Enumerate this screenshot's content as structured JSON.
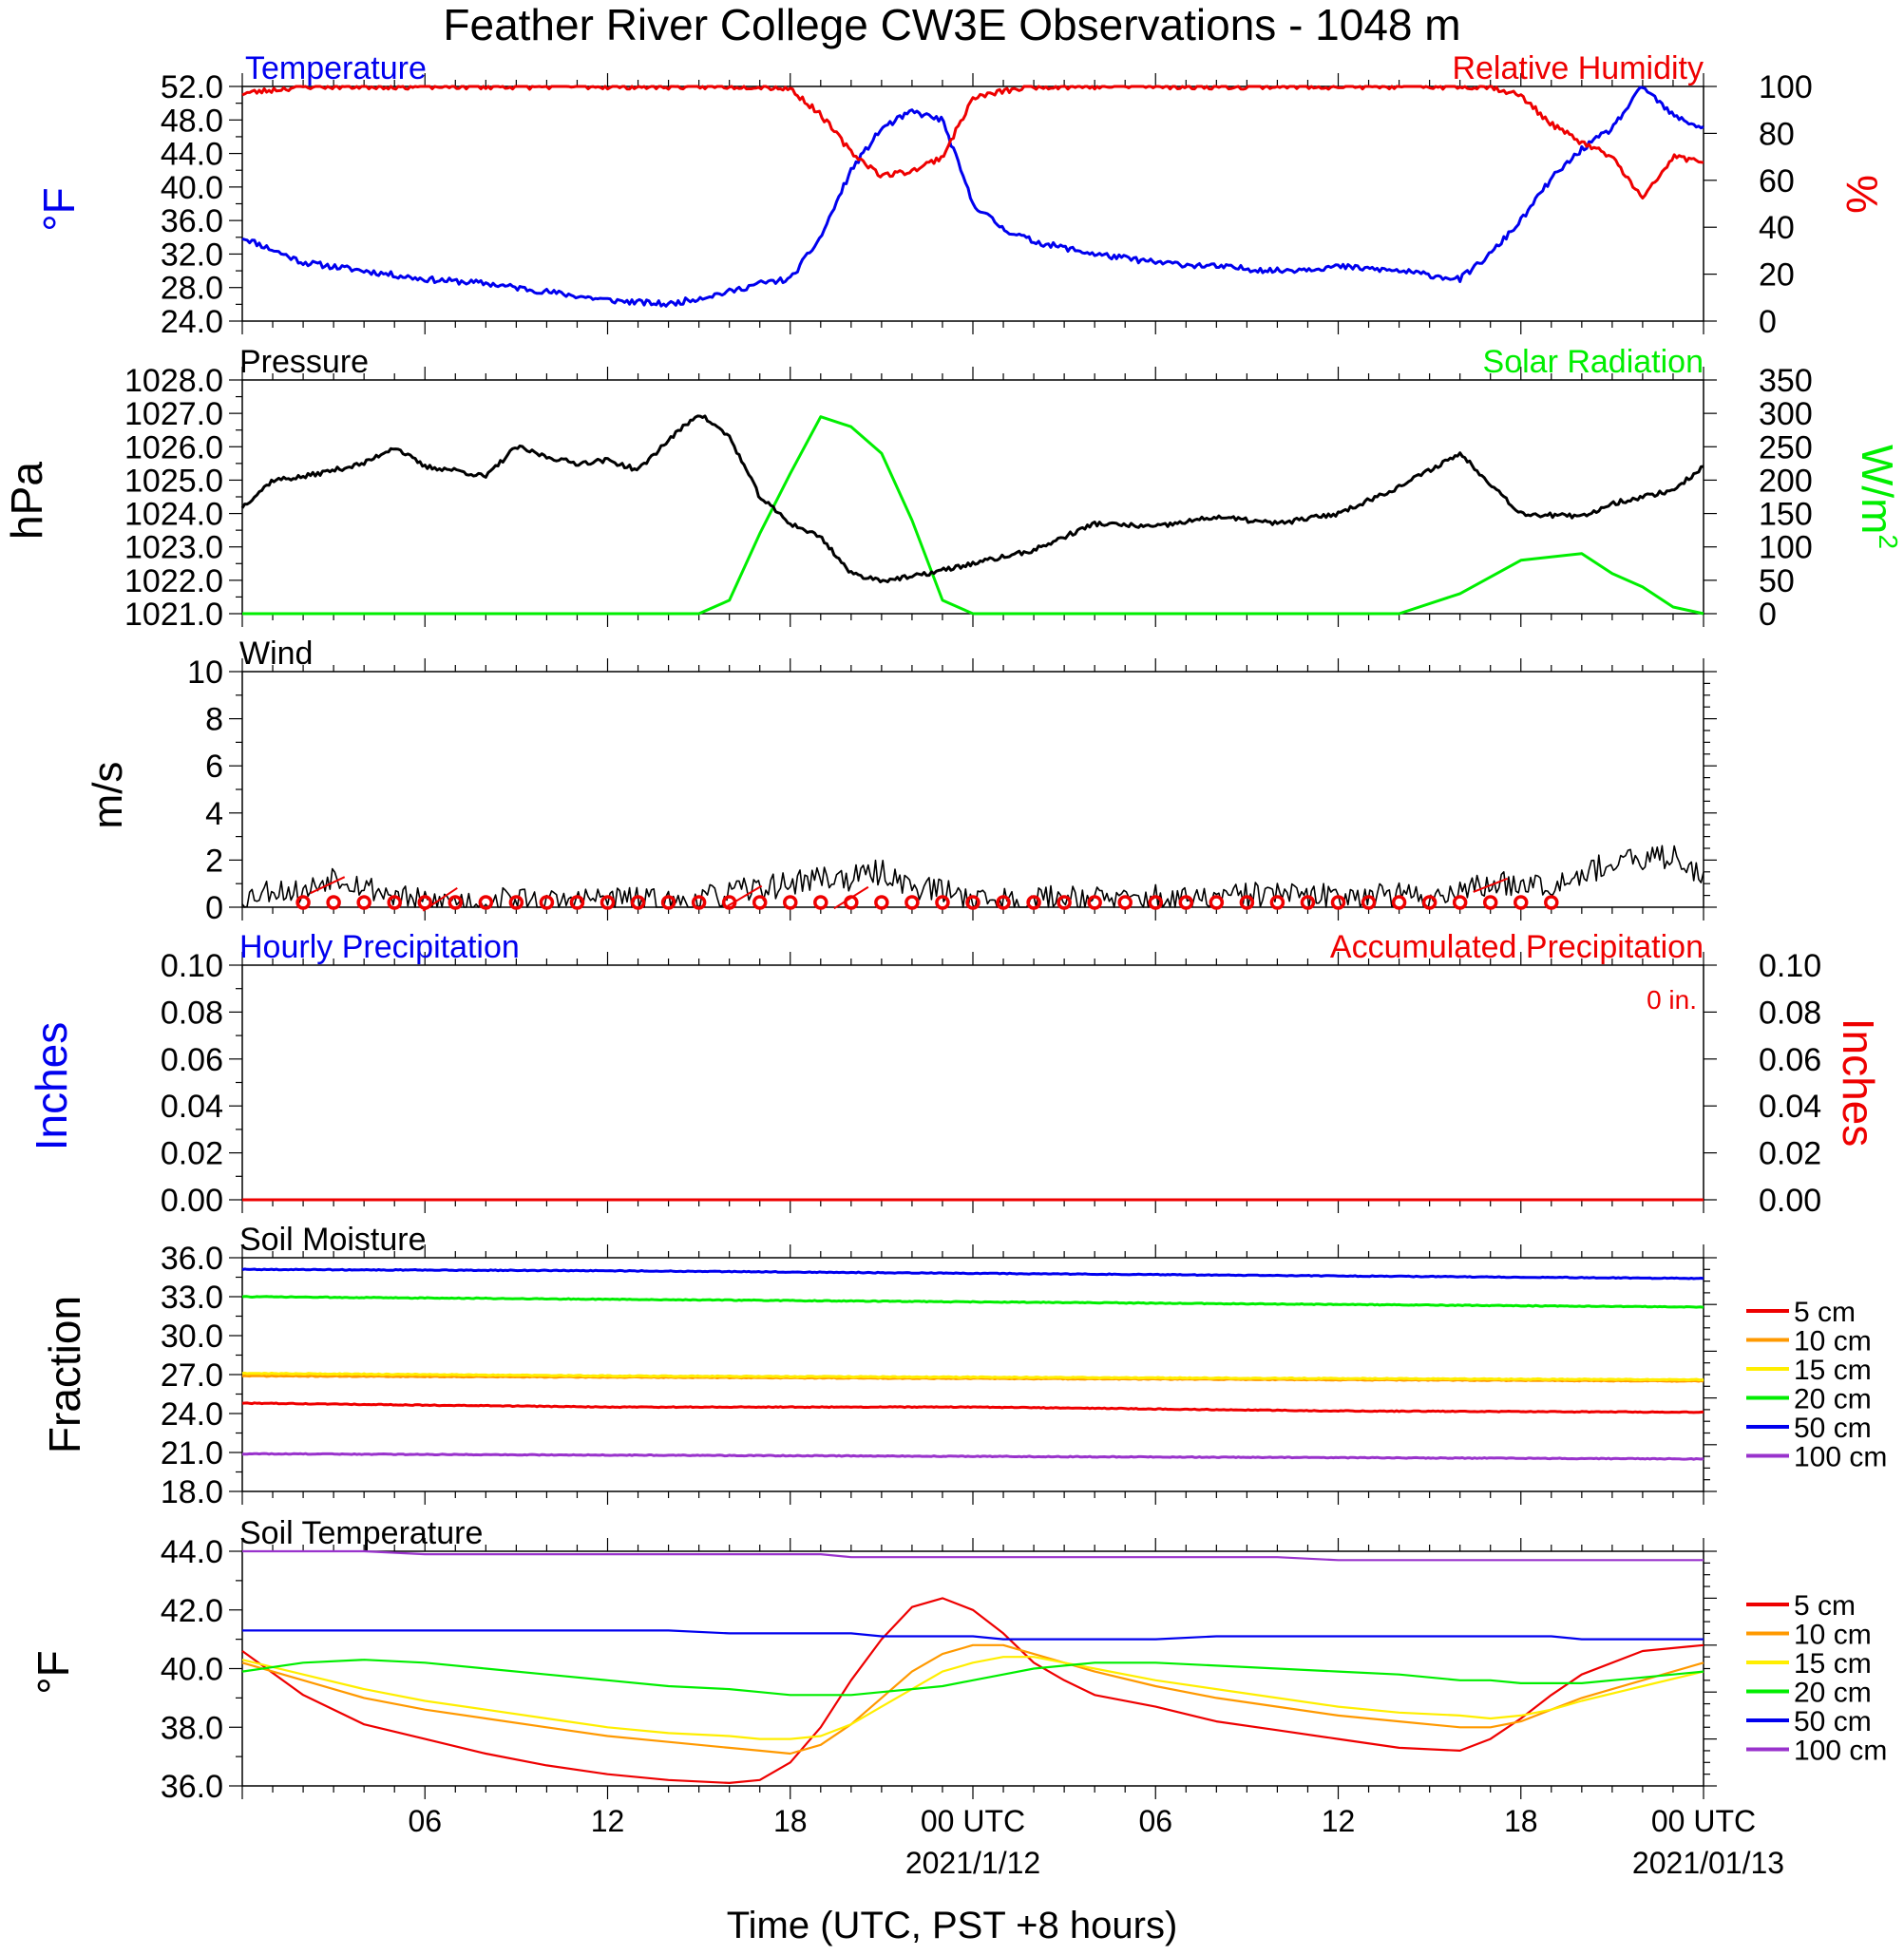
{
  "title": "Feather River College CW3E Observations - 1048 m",
  "x_axis": {
    "title": "Time (UTC, PST +8 hours)",
    "tick_labels": [
      "06",
      "12",
      "18",
      "00 UTC",
      "06",
      "12",
      "18",
      "00 UTC"
    ],
    "date_labels": [
      "2021/1/12",
      "2021/01/13"
    ]
  },
  "colors": {
    "blue": "#0000ee",
    "red": "#ee0000",
    "green": "#00ee00",
    "black": "#000000",
    "orange": "#ff9900",
    "yellow": "#ffee00",
    "purple": "#9933cc"
  },
  "chart_data": [
    {
      "type": "line",
      "title_left": "Temperature",
      "title_right": "Relative Humidity",
      "ylabel_left": "°F",
      "ylabel_right": "%",
      "ylim_left": [
        24,
        52
      ],
      "ylim_right": [
        0,
        100
      ],
      "yticks_left": [
        "24.0",
        "28.0",
        "32.0",
        "36.0",
        "40.0",
        "44.0",
        "48.0",
        "52.0"
      ],
      "yticks_right": [
        "0",
        "20",
        "40",
        "60",
        "80",
        "100"
      ],
      "x_hours": [
        0,
        2,
        4,
        6,
        8,
        10,
        12,
        14,
        16,
        17,
        18,
        19,
        20,
        21,
        22,
        23,
        24,
        25,
        26,
        28,
        30,
        32,
        34,
        36,
        38,
        40,
        41,
        42,
        43,
        44,
        45,
        46,
        47,
        48
      ],
      "series": [
        {
          "name": "Temperature",
          "axis": "left",
          "values": [
            34,
            31,
            30,
            29,
            28.5,
            27.5,
            26.5,
            26,
            27.5,
            28.5,
            29,
            34,
            42,
            47,
            49,
            48,
            38,
            35,
            33.5,
            32,
            31,
            30.5,
            30,
            30.5,
            30,
            29,
            32,
            36,
            41,
            44.5,
            47,
            52,
            48.5,
            47
          ]
        },
        {
          "name": "Relative Humidity",
          "axis": "right",
          "values": [
            97,
            100,
            100,
            100,
            100,
            100,
            100,
            100,
            100,
            100,
            99,
            88,
            72,
            62,
            64,
            70,
            95,
            98,
            100,
            100,
            100,
            100,
            100,
            100,
            100,
            100,
            100,
            96,
            84,
            76,
            70,
            52,
            70,
            68
          ]
        }
      ]
    },
    {
      "type": "line",
      "title_left": "Pressure",
      "title_right": "Solar Radiation",
      "ylabel_left": "hPa",
      "ylabel_right": "W/m",
      "ylabel_right_sup": "2",
      "ylim_left": [
        1021,
        1028
      ],
      "ylim_right": [
        0,
        350
      ],
      "yticks_left": [
        "1021.0",
        "1022.0",
        "1023.0",
        "1024.0",
        "1025.0",
        "1026.0",
        "1027.0",
        "1028.0"
      ],
      "yticks_right": [
        "0",
        "50",
        "100",
        "150",
        "200",
        "250",
        "300",
        "350"
      ],
      "x_hours": [
        0,
        1,
        2,
        3,
        4,
        5,
        6,
        7,
        8,
        9,
        10,
        11,
        12,
        13,
        14,
        15,
        16,
        17,
        18,
        19,
        20,
        21,
        22,
        23,
        24,
        26,
        28,
        30,
        32,
        34,
        36,
        38,
        40,
        42,
        44,
        45,
        46,
        47,
        48
      ],
      "series": [
        {
          "name": "Pressure",
          "axis": "left",
          "values": [
            1024.2,
            1025.0,
            1025.1,
            1025.3,
            1025.5,
            1026.0,
            1025.4,
            1025.3,
            1025.1,
            1026.0,
            1025.7,
            1025.5,
            1025.6,
            1025.3,
            1026.2,
            1027.0,
            1026.3,
            1024.5,
            1023.7,
            1023.3,
            1022.2,
            1022.0,
            1022.1,
            1022.3,
            1022.5,
            1022.9,
            1023.7,
            1023.6,
            1023.9,
            1023.7,
            1024.0,
            1024.8,
            1025.8,
            1024.0,
            1023.9,
            1024.3,
            1024.5,
            1024.7,
            1025.4
          ]
        },
        {
          "name": "Solar Radiation",
          "axis": "right",
          "values": [
            0,
            0,
            0,
            0,
            0,
            0,
            0,
            0,
            0,
            0,
            0,
            0,
            0,
            0,
            0,
            0,
            20,
            120,
            210,
            295,
            280,
            240,
            140,
            20,
            0,
            0,
            0,
            0,
            0,
            0,
            0,
            0,
            30,
            80,
            90,
            60,
            40,
            10,
            0
          ]
        }
      ]
    },
    {
      "type": "line",
      "title_left": "Wind",
      "ylabel_left": "m/s",
      "ylim_left": [
        0,
        10
      ],
      "yticks_left": [
        "0",
        "2",
        "4",
        "6",
        "8",
        "10"
      ],
      "x_hours": [
        0,
        1,
        2,
        3,
        4,
        5,
        6,
        7,
        8,
        9,
        10,
        11,
        12,
        13,
        14,
        15,
        16,
        17,
        18,
        19,
        20,
        21,
        22,
        23,
        24,
        25,
        26,
        27,
        28,
        29,
        30,
        31,
        32,
        33,
        34,
        35,
        36,
        37,
        38,
        39,
        40,
        41,
        42,
        43,
        44,
        45,
        46,
        47,
        48
      ],
      "series": [
        {
          "name": "Wind speed",
          "axis": "left",
          "values": [
            0.4,
            0.8,
            0.6,
            1.4,
            0.9,
            0.5,
            0.2,
            0.3,
            0.2,
            0.4,
            0.2,
            0.3,
            0.4,
            0.3,
            0.2,
            0.3,
            0.6,
            0.8,
            1.0,
            1.3,
            1.2,
            1.5,
            0.9,
            0.7,
            0.4,
            0.3,
            0.3,
            0.5,
            0.4,
            0.3,
            0.4,
            0.3,
            0.4,
            0.5,
            0.6,
            0.4,
            0.5,
            0.6,
            0.5,
            0.4,
            0.8,
            0.9,
            1.1,
            1.0,
            1.5,
            1.8,
            2.0,
            2.2,
            1.4
          ]
        }
      ]
    },
    {
      "type": "line",
      "title_left": "Hourly Precipitation",
      "title_right": "Accumulated Precipitation",
      "accumulated_label": "0 in.",
      "ylabel_left": "Inches",
      "ylabel_right": "Inches",
      "ylim_left": [
        0,
        0.1
      ],
      "ylim_right": [
        0,
        0.1
      ],
      "yticks_left": [
        "0.00",
        "0.02",
        "0.04",
        "0.06",
        "0.08",
        "0.10"
      ],
      "yticks_right": [
        "0.00",
        "0.02",
        "0.04",
        "0.06",
        "0.08",
        "0.10"
      ],
      "x_hours": [
        0,
        48
      ],
      "series": [
        {
          "name": "Hourly Precipitation",
          "axis": "left",
          "values": [
            0,
            0
          ]
        },
        {
          "name": "Accumulated Precipitation",
          "axis": "right",
          "values": [
            0,
            0
          ]
        }
      ]
    },
    {
      "type": "line",
      "title_left": "Soil Moisture",
      "ylabel_left": "Fraction",
      "ylim_left": [
        18,
        36
      ],
      "yticks_left": [
        "18.0",
        "21.0",
        "24.0",
        "27.0",
        "30.0",
        "33.0",
        "36.0"
      ],
      "x_hours": [
        0,
        12,
        24,
        36,
        48
      ],
      "legend": [
        "5 cm",
        "10 cm",
        "15 cm",
        "20 cm",
        "50 cm",
        "100 cm"
      ],
      "series": [
        {
          "name": "5 cm",
          "values": [
            24.8,
            24.5,
            24.5,
            24.2,
            24.1
          ]
        },
        {
          "name": "10 cm",
          "values": [
            26.9,
            26.8,
            26.7,
            26.6,
            26.5
          ]
        },
        {
          "name": "15 cm",
          "values": [
            27.1,
            26.9,
            26.8,
            26.7,
            26.6
          ]
        },
        {
          "name": "20 cm",
          "values": [
            33.0,
            32.8,
            32.6,
            32.4,
            32.2
          ]
        },
        {
          "name": "50 cm",
          "values": [
            35.1,
            35.0,
            34.8,
            34.6,
            34.4
          ]
        },
        {
          "name": "100 cm",
          "values": [
            20.9,
            20.8,
            20.7,
            20.6,
            20.5
          ]
        }
      ]
    },
    {
      "type": "line",
      "title_left": "Soil Temperature",
      "ylabel_left": "°F",
      "ylim_left": [
        36,
        44
      ],
      "yticks_left": [
        "36.0",
        "38.0",
        "40.0",
        "42.0",
        "44.0"
      ],
      "x_hours": [
        0,
        2,
        4,
        6,
        8,
        10,
        12,
        14,
        16,
        17,
        18,
        19,
        20,
        21,
        22,
        23,
        24,
        25,
        26,
        27,
        28,
        30,
        32,
        34,
        36,
        38,
        40,
        41,
        42,
        43,
        44,
        46,
        48
      ],
      "legend": [
        "5 cm",
        "10 cm",
        "15 cm",
        "20 cm",
        "50 cm",
        "100 cm"
      ],
      "series": [
        {
          "name": "5 cm",
          "values": [
            40.6,
            39.1,
            38.1,
            37.6,
            37.1,
            36.7,
            36.4,
            36.2,
            36.1,
            36.2,
            36.8,
            38.0,
            39.6,
            41.0,
            42.1,
            42.4,
            42.0,
            41.2,
            40.2,
            39.6,
            39.1,
            38.7,
            38.2,
            37.9,
            37.6,
            37.3,
            37.2,
            37.6,
            38.3,
            39.1,
            39.8,
            40.6,
            40.8
          ]
        },
        {
          "name": "10 cm",
          "values": [
            40.2,
            39.6,
            39.0,
            38.6,
            38.3,
            38.0,
            37.7,
            37.5,
            37.3,
            37.2,
            37.1,
            37.4,
            38.1,
            39.0,
            39.9,
            40.5,
            40.8,
            40.8,
            40.5,
            40.2,
            39.9,
            39.4,
            39.0,
            38.7,
            38.4,
            38.2,
            38.0,
            38.0,
            38.2,
            38.6,
            39.0,
            39.6,
            40.2
          ]
        },
        {
          "name": "15 cm",
          "values": [
            40.3,
            39.8,
            39.3,
            38.9,
            38.6,
            38.3,
            38.0,
            37.8,
            37.7,
            37.6,
            37.6,
            37.7,
            38.1,
            38.7,
            39.3,
            39.9,
            40.2,
            40.4,
            40.4,
            40.2,
            40.0,
            39.6,
            39.3,
            39.0,
            38.7,
            38.5,
            38.4,
            38.3,
            38.4,
            38.6,
            38.9,
            39.4,
            39.9
          ]
        },
        {
          "name": "20 cm",
          "values": [
            39.9,
            40.2,
            40.3,
            40.2,
            40.0,
            39.8,
            39.6,
            39.4,
            39.3,
            39.2,
            39.1,
            39.1,
            39.1,
            39.2,
            39.3,
            39.4,
            39.6,
            39.8,
            40.0,
            40.1,
            40.2,
            40.2,
            40.1,
            40.0,
            39.9,
            39.8,
            39.6,
            39.6,
            39.5,
            39.5,
            39.5,
            39.7,
            39.9
          ]
        },
        {
          "name": "50 cm",
          "values": [
            41.3,
            41.3,
            41.3,
            41.3,
            41.3,
            41.3,
            41.3,
            41.3,
            41.2,
            41.2,
            41.2,
            41.2,
            41.2,
            41.1,
            41.1,
            41.1,
            41.1,
            41.0,
            41.0,
            41.0,
            41.0,
            41.0,
            41.1,
            41.1,
            41.1,
            41.1,
            41.1,
            41.1,
            41.1,
            41.1,
            41.0,
            41.0,
            41.0
          ]
        },
        {
          "name": "100 cm",
          "values": [
            44.0,
            44.0,
            44.0,
            43.9,
            43.9,
            43.9,
            43.9,
            43.9,
            43.9,
            43.9,
            43.9,
            43.9,
            43.8,
            43.8,
            43.8,
            43.8,
            43.8,
            43.8,
            43.8,
            43.8,
            43.8,
            43.8,
            43.8,
            43.8,
            43.7,
            43.7,
            43.7,
            43.7,
            43.7,
            43.7,
            43.7,
            43.7,
            43.7
          ]
        }
      ]
    }
  ]
}
